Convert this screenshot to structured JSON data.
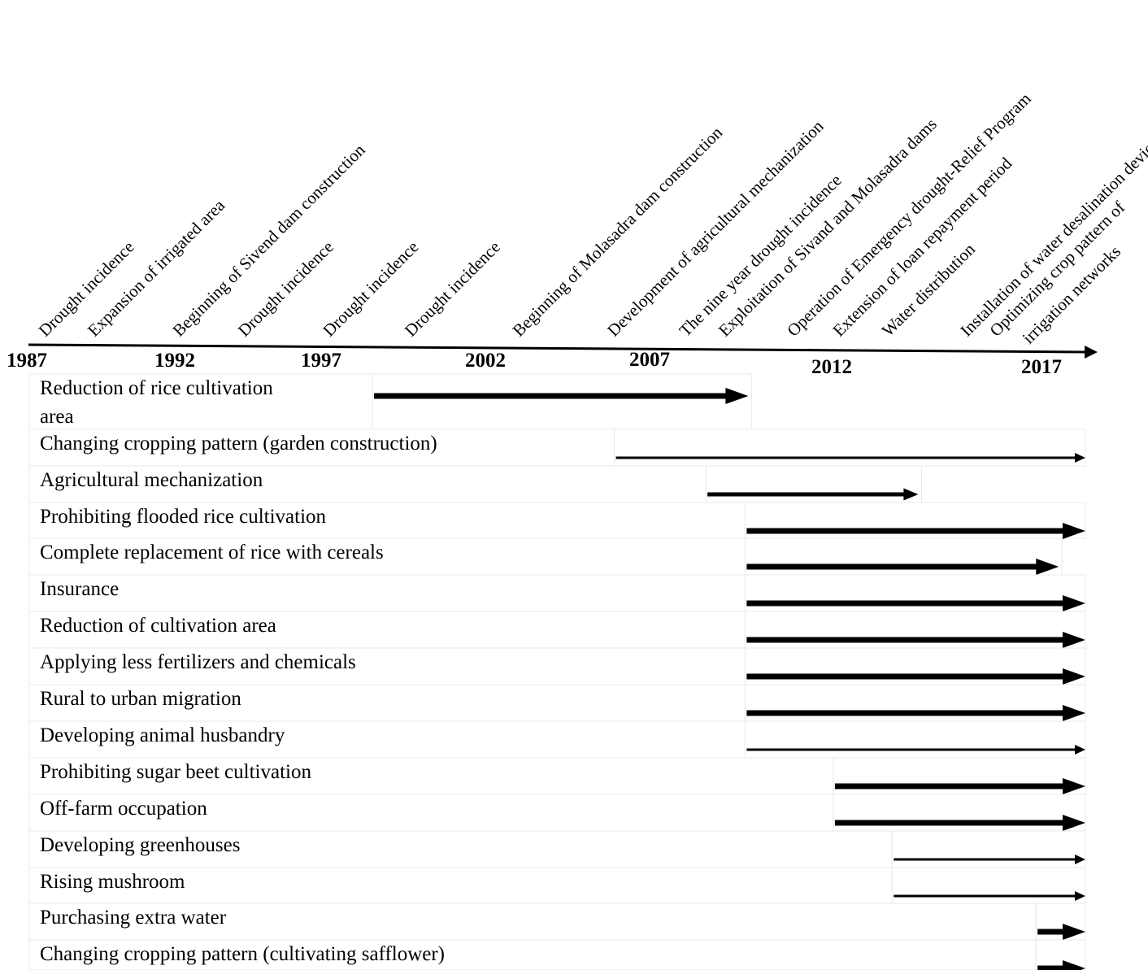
{
  "timeline": {
    "events": [
      {
        "label": "Drought incidence",
        "year": 1987.3
      },
      {
        "label": "Expansion of irrigated area",
        "year": 1988.8
      },
      {
        "label": "Beginning of Sivend dam construction",
        "year": 1991.4
      },
      {
        "label": "Drought incidence",
        "year": 1993.4
      },
      {
        "label": "Drought incidence",
        "year": 1996.0
      },
      {
        "label": "Drought incidence",
        "year": 1998.5
      },
      {
        "label": "Beginning of Molasadra dam construction",
        "year": 2001.8
      },
      {
        "label": "Development of agricultural mechanization",
        "year": 2004.7
      },
      {
        "label": "The nine year drought incidence",
        "year": 2006.9
      },
      {
        "label": "Exploitation of Sivand and Molasadra dams",
        "year": 2008.1
      },
      {
        "label": "Operation of Emergency drought-Relief Program",
        "year": 2010.2
      },
      {
        "label": "Extension of loan repayment period",
        "year": 2011.6
      },
      {
        "label": "Water distribution",
        "year": 2013.1
      },
      {
        "label": "Installation of water desalination devices",
        "year": 2015.5
      },
      {
        "label": "Optimizing crop pattern of",
        "year": 2016.4
      },
      {
        "label": "irrigation networks",
        "year": 2017.4
      }
    ],
    "years": [
      "1987",
      "1992",
      "1997",
      "2002",
      "2007",
      "2012",
      "2017"
    ]
  },
  "strategies": [
    {
      "label": "Reduction of rice cultivation",
      "label2": "area",
      "start": 1997.4,
      "end": 2008.9,
      "weight": "thick"
    },
    {
      "label": "Changing cropping pattern (garden construction)",
      "start": 2004.8,
      "end": 2020.9,
      "weight": "thin"
    },
    {
      "label": "Agricultural mechanization",
      "start": 2007.6,
      "end": 2014.1,
      "weight": "medium"
    },
    {
      "label": "Prohibiting flooded rice cultivation",
      "start": 2008.8,
      "end": 2020.9,
      "weight": "thick"
    },
    {
      "label": "Complete replacement of rice with cereals",
      "start": 2008.8,
      "end": 2018.4,
      "weight": "thick"
    },
    {
      "label": "Insurance",
      "start": 2008.8,
      "end": 2020.9,
      "weight": "thick"
    },
    {
      "label": "Reduction of cultivation area",
      "start": 2008.8,
      "end": 2020.9,
      "weight": "thick"
    },
    {
      "label": "Applying less fertilizers and chemicals",
      "start": 2008.8,
      "end": 2020.9,
      "weight": "thick"
    },
    {
      "label": "Rural to urban migration",
      "start": 2008.8,
      "end": 2020.9,
      "weight": "thick"
    },
    {
      "label": "Developing animal husbandry",
      "start": 2008.8,
      "end": 2020.9,
      "weight": "thin"
    },
    {
      "label": "Prohibiting sugar beet cultivation",
      "start": 2011.5,
      "end": 2020.8,
      "weight": "thick"
    },
    {
      "label": "Off-farm occupation",
      "start": 2011.5,
      "end": 2020.9,
      "weight": "thick"
    },
    {
      "label": "Developing greenhouses",
      "start": 2013.3,
      "end": 2020.8,
      "weight": "thin"
    },
    {
      "label": "Rising mushroom",
      "start": 2013.3,
      "end": 2020.8,
      "weight": "thin"
    },
    {
      "label": "Purchasing extra water",
      "start": 2017.7,
      "end": 2020.9,
      "weight": "thick"
    },
    {
      "label": "Changing cropping pattern (cultivating safflower)",
      "start": 2017.7,
      "end": 2020.9,
      "weight": "thick"
    }
  ]
}
